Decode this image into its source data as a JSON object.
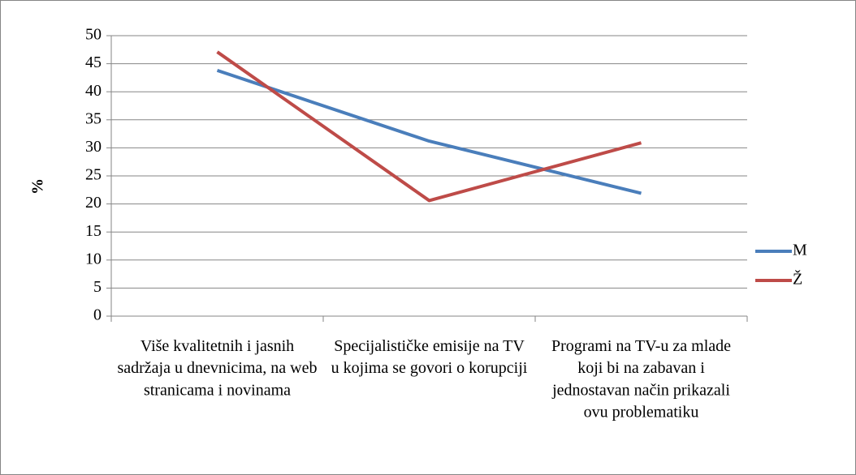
{
  "chart_data": {
    "type": "line",
    "categories": [
      "Više kvalitetnih i jasnih sadržaja u dnevnicima, na web stranicama i novinama",
      "Specijalističke emisije na TV u kojima se govori o korupciji",
      "Programi na TV-u za mlade koji bi na zabavan i jednostavan način prikazali ovu problematiku"
    ],
    "series": [
      {
        "name": "M",
        "color": "#4a7ebb",
        "values": [
          43.8,
          31.2,
          21.9
        ]
      },
      {
        "name": "Ž",
        "color": "#be4b48",
        "values": [
          47.1,
          20.6,
          30.9
        ]
      }
    ],
    "y_label": "%",
    "ylim": [
      0,
      50
    ],
    "yticks": [
      0,
      5,
      10,
      15,
      20,
      25,
      30,
      35,
      40,
      45,
      50
    ],
    "grid": true,
    "legend": "right"
  }
}
